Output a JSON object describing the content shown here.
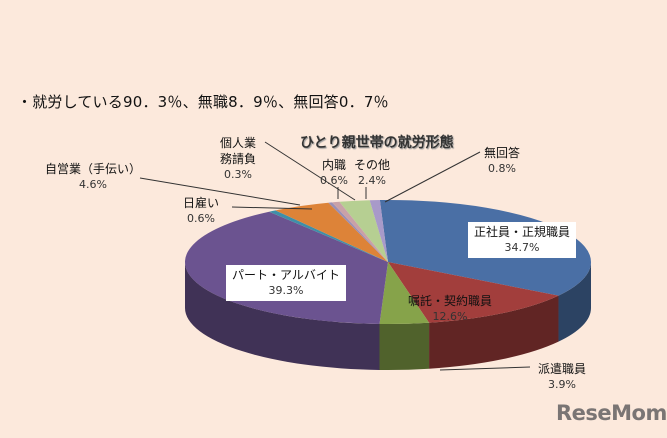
{
  "summary_text": "・就労している90．3％、無職8．9％、無回答0．7％",
  "chart_data": {
    "type": "pie",
    "title": "ひとり親世帯の就労形態",
    "style": "3d-pie",
    "categories": [
      "正社員・正規職員",
      "嘱託・契約職員",
      "派遣職員",
      "パート・アルバイト",
      "日雇い",
      "自営業（手伝い）",
      "個人業務請負",
      "内職",
      "その他",
      "無回答"
    ],
    "values": [
      34.7,
      12.6,
      3.9,
      39.3,
      0.6,
      4.6,
      0.3,
      0.6,
      2.4,
      0.8
    ],
    "colors": [
      "#4a6fa5",
      "#a23e3c",
      "#86a34a",
      "#6b5390",
      "#3f8fa8",
      "#dd8338",
      "#9a8fb5",
      "#c9a1a8",
      "#b6cf92",
      "#a89ac9"
    ],
    "labels": [
      {
        "name": "正社員・正規職員",
        "pct": "34.7%"
      },
      {
        "name": "嘱託・契約職員",
        "pct": "12.6%"
      },
      {
        "name": "派遣職員",
        "pct": "3.9%"
      },
      {
        "name": "パート・アルバイト",
        "pct": "39.3%"
      },
      {
        "name": "日雇い",
        "pct": "0.6%"
      },
      {
        "name": "自営業（手伝い）",
        "pct": "4.6%"
      },
      {
        "name_line1": "個人業",
        "name_line2": "務請負",
        "pct": "0.3%"
      },
      {
        "name": "内職",
        "pct": "0.6%"
      },
      {
        "name": "その他",
        "pct": "2.4%"
      },
      {
        "name": "無回答",
        "pct": "0.8%"
      }
    ]
  },
  "watermark": "ReseMom"
}
